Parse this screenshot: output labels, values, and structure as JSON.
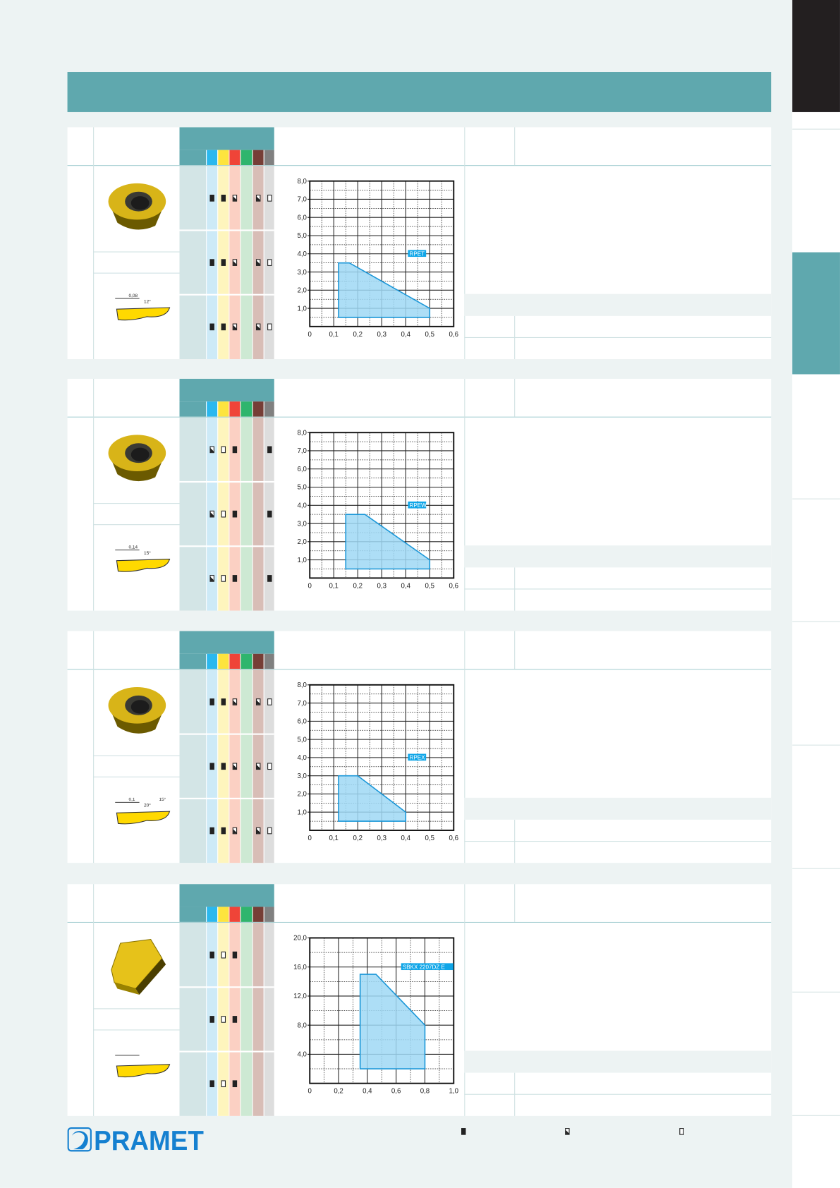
{
  "brand": {
    "logo_text": "PRAMET",
    "color": "#1580d0"
  },
  "colors": {
    "header": "#5fa8ae",
    "page_bg": "#edf3f3",
    "grid_area": "#9fd8f5",
    "grid_stroke": "#1b97d8"
  },
  "grade_columns": [
    {
      "color": "#2bb8ee",
      "light": "#cdeaf7"
    },
    {
      "color": "#fde43e",
      "light": "#fef5bd"
    },
    {
      "color": "#ef4438",
      "light": "#fbd0c3"
    },
    {
      "color": "#2fb56d",
      "light": "#cde9d3"
    },
    {
      "color": "#763e36",
      "light": "#d8bdb6"
    },
    {
      "color": "#808080",
      "light": "#dddddd"
    }
  ],
  "blocks": [
    {
      "insert_shape": "round",
      "sketch": {
        "dims": [
          "0,08",
          "12°"
        ]
      },
      "markers": [
        [
          "full",
          "full",
          "half",
          "",
          "half",
          "empty"
        ],
        [
          "full",
          "full",
          "half",
          "",
          "half",
          "empty"
        ],
        [
          "full",
          "full",
          "half",
          "",
          "half",
          "empty"
        ]
      ]
    },
    {
      "insert_shape": "round",
      "sketch": {
        "dims": [
          "0,14",
          "15°"
        ]
      },
      "markers": [
        [
          "half",
          "empty",
          "full",
          "",
          "",
          "full"
        ],
        [
          "half",
          "empty",
          "full",
          "",
          "",
          "full"
        ],
        [
          "half",
          "empty",
          "full",
          "",
          "",
          "full"
        ]
      ]
    },
    {
      "insert_shape": "round-chamfer",
      "sketch": {
        "dims": [
          "0,1",
          "20°",
          "15°"
        ]
      },
      "markers": [
        [
          "full",
          "full",
          "half",
          "",
          "half",
          "empty"
        ],
        [
          "full",
          "full",
          "half",
          "",
          "half",
          "empty"
        ],
        [
          "full",
          "full",
          "half",
          "",
          "half",
          "empty"
        ]
      ]
    },
    {
      "insert_shape": "square",
      "sketch": {
        "dims": []
      },
      "markers": [
        [
          "full",
          "empty",
          "full",
          "",
          "",
          ""
        ],
        [
          "full",
          "empty",
          "full",
          "",
          "",
          ""
        ],
        [
          "full",
          "empty",
          "full",
          "",
          "",
          ""
        ]
      ]
    }
  ],
  "chart_data": [
    {
      "type": "area",
      "label": "RPET",
      "xlim": [
        0,
        0.6
      ],
      "ylim": [
        0,
        8
      ],
      "xticks": [
        "0",
        "0,1",
        "0,2",
        "0,3",
        "0,4",
        "0,5",
        "0,6"
      ],
      "yticks": [
        "1,0",
        "2,0",
        "3,0",
        "4,0",
        "5,0",
        "6,0",
        "7,0",
        "8,0"
      ],
      "grid": true,
      "polygon": [
        [
          0.12,
          0.5
        ],
        [
          0.12,
          3.5
        ],
        [
          0.165,
          3.5
        ],
        [
          0.5,
          1.0
        ],
        [
          0.5,
          0.5
        ]
      ]
    },
    {
      "type": "area",
      "label": "RPEW",
      "xlim": [
        0,
        0.6
      ],
      "ylim": [
        0,
        8
      ],
      "xticks": [
        "0",
        "0,1",
        "0,2",
        "0,3",
        "0,4",
        "0,5",
        "0,6"
      ],
      "yticks": [
        "1,0",
        "2,0",
        "3,0",
        "4,0",
        "5,0",
        "6,0",
        "7,0",
        "8,0"
      ],
      "grid": true,
      "polygon": [
        [
          0.15,
          0.5
        ],
        [
          0.15,
          3.5
        ],
        [
          0.23,
          3.5
        ],
        [
          0.5,
          1.0
        ],
        [
          0.5,
          0.5
        ]
      ]
    },
    {
      "type": "area",
      "label": "RPEX",
      "xlim": [
        0,
        0.6
      ],
      "ylim": [
        0,
        8
      ],
      "xticks": [
        "0",
        "0,1",
        "0,2",
        "0,3",
        "0,4",
        "0,5",
        "0,6"
      ],
      "yticks": [
        "1,0",
        "2,0",
        "3,0",
        "4,0",
        "5,0",
        "6,0",
        "7,0",
        "8,0"
      ],
      "grid": true,
      "polygon": [
        [
          0.12,
          0.5
        ],
        [
          0.12,
          3.0
        ],
        [
          0.2,
          3.0
        ],
        [
          0.4,
          1.0
        ],
        [
          0.4,
          0.5
        ]
      ]
    },
    {
      "type": "area",
      "label": "SBKX 2207DZ E",
      "xlim": [
        0,
        1.0
      ],
      "ylim": [
        0,
        20
      ],
      "xticks": [
        "0",
        "0,2",
        "0,4",
        "0,6",
        "0,8",
        "1,0"
      ],
      "yticks": [
        "4,0",
        "8,0",
        "12,0",
        "16,0",
        "20,0"
      ],
      "grid": true,
      "polygon": [
        [
          0.35,
          2
        ],
        [
          0.35,
          15
        ],
        [
          0.46,
          15
        ],
        [
          0.8,
          8
        ],
        [
          0.8,
          2
        ]
      ]
    }
  ],
  "legend": [
    {
      "marker": "full"
    },
    {
      "marker": "half"
    },
    {
      "marker": "empty"
    }
  ]
}
